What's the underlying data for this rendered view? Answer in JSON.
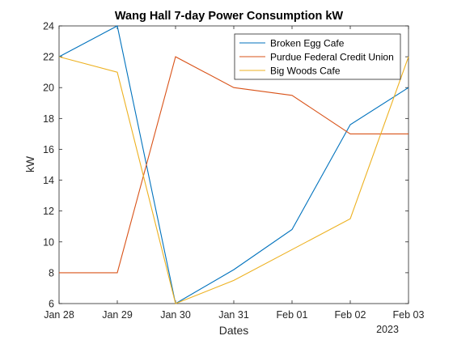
{
  "chart_data": {
    "type": "line",
    "title": "Wang Hall 7-day Power Consumption kW",
    "xlabel": "Dates",
    "ylabel": "kW",
    "x": [
      "Jan 28",
      "Jan 29",
      "Jan 30",
      "Jan 31",
      "Feb 01",
      "Feb 02",
      "Feb 03"
    ],
    "x_year_label": "2023",
    "ylim": [
      6,
      24
    ],
    "yticks": [
      6,
      8,
      10,
      12,
      14,
      16,
      18,
      20,
      22,
      24
    ],
    "grid": false,
    "legend_location": "top-right",
    "series": [
      {
        "name": "Broken Egg Cafe",
        "color": "#0072BD",
        "values": [
          22,
          24,
          6,
          8.2,
          10.8,
          17.6,
          20
        ]
      },
      {
        "name": "Purdue Federal Credit Union",
        "color": "#D95319",
        "values": [
          8,
          8,
          22,
          20,
          19.5,
          17,
          17
        ]
      },
      {
        "name": "Big Woods Cafe",
        "color": "#EDB120",
        "values": [
          22,
          21,
          6,
          7.5,
          9.5,
          11.5,
          22
        ]
      }
    ]
  }
}
